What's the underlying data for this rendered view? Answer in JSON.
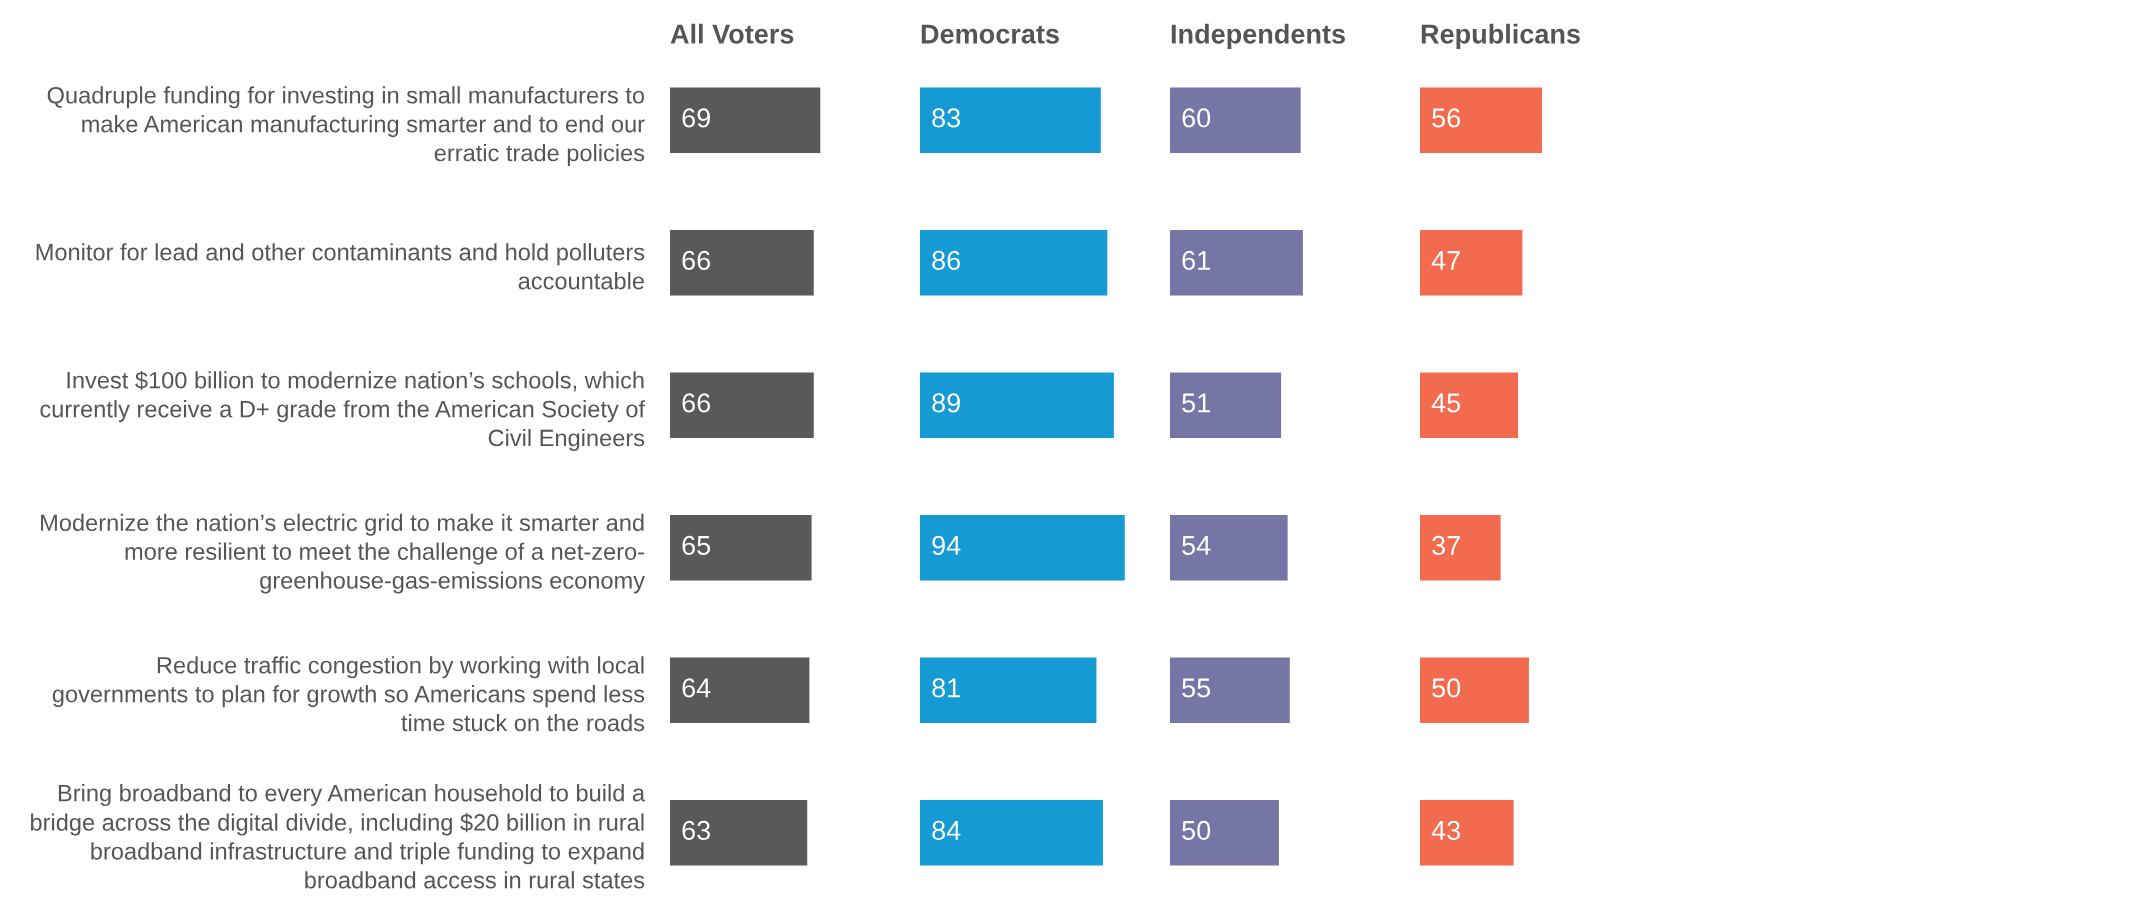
{
  "chart_data": [
    {
      "type": "bar",
      "orientation": "horizontal",
      "title": "All Voters",
      "tick_labels": "y",
      "data_labels": true,
      "color": "#58595b",
      "categories": [
        "Quadruple funding for investing in small manufacturers to\nmake American manufacturing smarter and to end our\nerratic trade policies",
        "Monitor for lead and other contaminants and hold polluters\naccountable",
        "Invest $100 billion to modernize nation’s schools, which\ncurrently receive a D+ grade from the American Society of\nCivil Engineers",
        "Modernize the nation’s electric grid to make it smarter and\nmore resilient to meet the challenge of a net-zero-\ngreenhouse-gas-emissions economy",
        "Reduce traffic congestion by working with local\ngovernments to plan for growth so Americans spend less\ntime stuck on the roads",
        "Bring broadband to every American household to build a\nbridge across the digital divide, including $20 billion in rural\nbroadband infrastructure and triple funding to expand\nbroadband access in rural states"
      ],
      "values": [
        69,
        66,
        66,
        65,
        64,
        63
      ]
    },
    {
      "type": "bar",
      "orientation": "horizontal",
      "title": "Democrats",
      "tick_labels": false,
      "data_labels": true,
      "color": "#159ad4",
      "categories": [
        null,
        null,
        null,
        null,
        null,
        null
      ],
      "values": [
        83,
        86,
        89,
        94,
        81,
        84
      ]
    },
    {
      "type": "bar",
      "orientation": "horizontal",
      "title": "Independents",
      "tick_labels": false,
      "data_labels": true,
      "color": "#7576a6",
      "categories": [
        null,
        null,
        null,
        null,
        null,
        null
      ],
      "values": [
        60,
        61,
        51,
        54,
        55,
        50
      ]
    },
    {
      "type": "bar",
      "orientation": "horizontal",
      "title": "Republicans",
      "tick_labels": false,
      "data_labels": true,
      "color": "#f26b4e",
      "categories": [
        null,
        null,
        null,
        null,
        null,
        null
      ],
      "values": [
        56,
        47,
        45,
        37,
        50,
        43
      ]
    }
  ]
}
